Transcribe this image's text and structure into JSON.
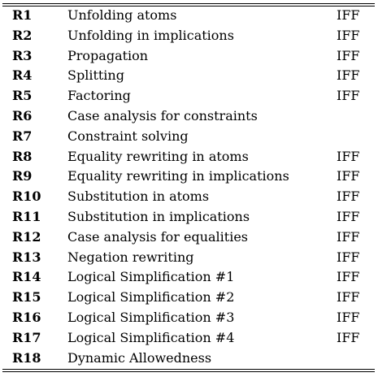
{
  "table": {
    "rows": [
      {
        "id": "R1",
        "description": "Unfolding atoms",
        "semantics": "IFF"
      },
      {
        "id": "R2",
        "description": "Unfolding in implications",
        "semantics": "IFF"
      },
      {
        "id": "R3",
        "description": "Propagation",
        "semantics": "IFF"
      },
      {
        "id": "R4",
        "description": "Splitting",
        "semantics": "IFF"
      },
      {
        "id": "R5",
        "description": "Factoring",
        "semantics": "IFF"
      },
      {
        "id": "R6",
        "description": "Case analysis for constraints",
        "semantics": ""
      },
      {
        "id": "R7",
        "description": "Constraint solving",
        "semantics": ""
      },
      {
        "id": "R8",
        "description": "Equality rewriting in atoms",
        "semantics": "IFF"
      },
      {
        "id": "R9",
        "description": "Equality rewriting in implications",
        "semantics": "IFF"
      },
      {
        "id": "R10",
        "description": "Substitution in atoms",
        "semantics": "IFF"
      },
      {
        "id": "R11",
        "description": "Substitution in implications",
        "semantics": "IFF"
      },
      {
        "id": "R12",
        "description": "Case analysis for equalities",
        "semantics": "IFF"
      },
      {
        "id": "R13",
        "description": "Negation rewriting",
        "semantics": "IFF"
      },
      {
        "id": "R14",
        "description": "Logical Simplification #1",
        "semantics": "IFF"
      },
      {
        "id": "R15",
        "description": "Logical Simplification #2",
        "semantics": "IFF"
      },
      {
        "id": "R16",
        "description": "Logical Simplification #3",
        "semantics": "IFF"
      },
      {
        "id": "R17",
        "description": "Logical Simplification #4",
        "semantics": "IFF"
      },
      {
        "id": "R18",
        "description": "Dynamic Allowedness",
        "semantics": ""
      }
    ]
  }
}
